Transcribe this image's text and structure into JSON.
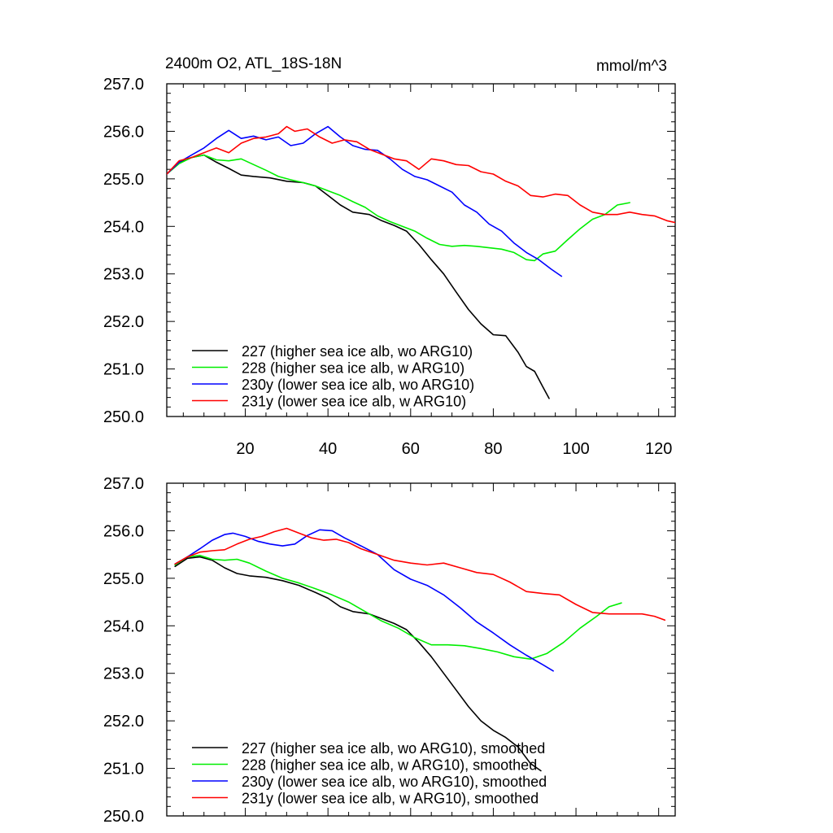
{
  "header": {
    "title": "2400m O2, ATL_18S-18N",
    "units": "mmol/m^3"
  },
  "chart_data": [
    {
      "type": "line",
      "panel": "top",
      "title": "2400m O2, ATL_18S-18N",
      "units": "mmol/m^3",
      "xlabel": "",
      "ylabel": "",
      "xlim": [
        1,
        124
      ],
      "ylim": [
        250.0,
        257.0
      ],
      "x_ticks": [
        "20",
        "40",
        "60",
        "80",
        "100",
        "120"
      ],
      "y_ticks": [
        "250.0",
        "251.0",
        "252.0",
        "253.0",
        "254.0",
        "255.0",
        "256.0",
        "257.0"
      ],
      "legend_position": "bottom-left",
      "series": [
        {
          "name": "227 (higher sea ice alb, wo ARG10)",
          "color": "#000000",
          "x": [
            1,
            4,
            7,
            10,
            13,
            16,
            19,
            22,
            26,
            30,
            34,
            37,
            40,
            43,
            46,
            50,
            53,
            56,
            59,
            62,
            65,
            68,
            71,
            74,
            77,
            80,
            83,
            86,
            88,
            90,
            92,
            93.5
          ],
          "y": [
            255.1,
            255.35,
            255.45,
            255.5,
            255.35,
            255.22,
            255.08,
            255.05,
            255.02,
            254.95,
            254.92,
            254.85,
            254.65,
            254.45,
            254.3,
            254.25,
            254.12,
            254.02,
            253.9,
            253.62,
            253.3,
            253.0,
            252.62,
            252.25,
            251.95,
            251.72,
            251.7,
            251.35,
            251.05,
            250.95,
            250.62,
            250.38
          ]
        },
        {
          "name": "228 (higher sea ice alb, w ARG10)",
          "color": "#00ee00",
          "x": [
            1,
            4,
            7,
            10,
            13,
            16,
            19,
            22,
            25,
            28,
            31,
            34,
            37,
            40,
            43,
            46,
            49,
            52,
            55,
            58,
            61,
            64,
            67,
            70,
            73,
            76,
            79,
            82,
            85,
            88,
            90,
            92,
            95,
            98,
            101,
            104,
            107,
            110,
            113
          ],
          "y": [
            255.1,
            255.32,
            255.45,
            255.5,
            255.4,
            255.38,
            255.42,
            255.3,
            255.18,
            255.05,
            254.98,
            254.92,
            254.85,
            254.75,
            254.65,
            254.52,
            254.4,
            254.22,
            254.1,
            254.0,
            253.9,
            253.75,
            253.62,
            253.58,
            253.6,
            253.58,
            253.55,
            253.52,
            253.45,
            253.3,
            253.28,
            253.42,
            253.48,
            253.72,
            253.95,
            254.15,
            254.25,
            254.45,
            254.5
          ]
        },
        {
          "name": "230y (lower sea ice alb, wo ARG10)",
          "color": "#0000ff",
          "x": [
            1,
            4,
            7,
            10,
            13,
            16,
            19,
            22,
            25,
            28,
            31,
            34,
            37,
            40,
            43,
            46,
            49,
            52,
            55,
            58,
            61,
            64,
            67,
            70,
            73,
            76,
            79,
            82,
            85,
            88,
            91,
            94,
            96.5
          ],
          "y": [
            255.1,
            255.35,
            255.5,
            255.65,
            255.85,
            256.02,
            255.85,
            255.9,
            255.82,
            255.88,
            255.7,
            255.75,
            255.95,
            256.1,
            255.88,
            255.7,
            255.62,
            255.6,
            255.42,
            255.2,
            255.05,
            254.98,
            254.85,
            254.72,
            254.45,
            254.3,
            254.05,
            253.9,
            253.65,
            253.45,
            253.3,
            253.1,
            252.95
          ]
        },
        {
          "name": "231y (lower sea ice alb, w ARG10)",
          "color": "#ff0000",
          "x": [
            1,
            4,
            7,
            10,
            13,
            16,
            19,
            22,
            25,
            28,
            30,
            32,
            35,
            38,
            41,
            44,
            47,
            50,
            53,
            56,
            59,
            62,
            65,
            68,
            71,
            74,
            77,
            80,
            83,
            86,
            89,
            92,
            95,
            98,
            101,
            104,
            107,
            110,
            113,
            116,
            119,
            122,
            124
          ],
          "y": [
            255.1,
            255.38,
            255.45,
            255.55,
            255.65,
            255.55,
            255.75,
            255.85,
            255.88,
            255.95,
            256.1,
            256.0,
            256.05,
            255.88,
            255.75,
            255.82,
            255.78,
            255.62,
            255.52,
            255.42,
            255.38,
            255.2,
            255.42,
            255.38,
            255.3,
            255.28,
            255.15,
            255.1,
            254.95,
            254.85,
            254.65,
            254.62,
            254.68,
            254.65,
            254.45,
            254.3,
            254.25,
            254.25,
            254.3,
            254.25,
            254.22,
            254.12,
            254.08
          ]
        }
      ]
    },
    {
      "type": "line",
      "panel": "bottom",
      "title": "",
      "xlabel": "",
      "ylabel": "",
      "xlim": [
        1,
        124
      ],
      "ylim": [
        250.0,
        257.0
      ],
      "y_ticks": [
        "250.0",
        "251.0",
        "252.0",
        "253.0",
        "254.0",
        "255.0",
        "256.0",
        "257.0"
      ],
      "legend_position": "bottom-left",
      "series": [
        {
          "name": "227 (higher sea ice alb, wo ARG10), smoothed",
          "color": "#000000",
          "x": [
            3,
            6,
            9,
            12,
            15,
            18,
            21,
            25,
            29,
            33,
            37,
            40,
            43,
            46,
            50,
            53,
            56,
            59,
            62,
            65,
            68,
            71,
            74,
            77,
            80,
            83,
            86,
            89,
            91.5
          ],
          "y": [
            255.25,
            255.42,
            255.45,
            255.38,
            255.22,
            255.1,
            255.05,
            255.02,
            254.95,
            254.85,
            254.7,
            254.58,
            254.4,
            254.3,
            254.25,
            254.15,
            254.05,
            253.92,
            253.65,
            253.35,
            253.0,
            252.65,
            252.3,
            252.0,
            251.8,
            251.65,
            251.45,
            251.1,
            250.95
          ]
        },
        {
          "name": "228 (higher sea ice alb, w ARG10), smoothed",
          "color": "#00ee00",
          "x": [
            3,
            6,
            9,
            12,
            15,
            18,
            21,
            25,
            29,
            33,
            37,
            41,
            45,
            49,
            53,
            57,
            61,
            65,
            69,
            73,
            77,
            81,
            85,
            89,
            93,
            97,
            101,
            105,
            108,
            111
          ],
          "y": [
            255.28,
            255.45,
            255.48,
            255.4,
            255.38,
            255.4,
            255.32,
            255.15,
            255.0,
            254.9,
            254.78,
            254.65,
            254.5,
            254.3,
            254.1,
            253.95,
            253.75,
            253.6,
            253.6,
            253.58,
            253.52,
            253.45,
            253.35,
            253.3,
            253.42,
            253.65,
            253.95,
            254.2,
            254.4,
            254.48
          ]
        },
        {
          "name": "230y (lower sea ice alb, wo ARG10), smoothed",
          "color": "#0000ff",
          "x": [
            3,
            6,
            9,
            12,
            15,
            17,
            20,
            23,
            26,
            29,
            32,
            35,
            38,
            41,
            44,
            48,
            52,
            56,
            60,
            64,
            68,
            72,
            76,
            80,
            84,
            88,
            92,
            94.5
          ],
          "y": [
            255.3,
            255.45,
            255.62,
            255.8,
            255.92,
            255.95,
            255.88,
            255.78,
            255.72,
            255.68,
            255.72,
            255.9,
            256.02,
            256.0,
            255.85,
            255.68,
            255.5,
            255.18,
            254.98,
            254.85,
            254.65,
            254.38,
            254.08,
            253.85,
            253.6,
            253.38,
            253.18,
            253.05
          ]
        },
        {
          "name": "231y (lower sea ice alb, w ARG10), smoothed",
          "color": "#ff0000",
          "x": [
            3,
            6,
            9,
            12,
            15,
            18,
            21,
            24,
            27,
            30,
            33,
            36,
            39,
            42,
            45,
            48,
            52,
            56,
            60,
            64,
            68,
            72,
            76,
            80,
            84,
            88,
            92,
            96,
            100,
            104,
            108,
            112,
            116,
            119,
            121.5
          ],
          "y": [
            255.3,
            255.45,
            255.55,
            255.58,
            255.6,
            255.72,
            255.82,
            255.88,
            255.98,
            256.05,
            255.95,
            255.85,
            255.8,
            255.82,
            255.75,
            255.62,
            255.5,
            255.38,
            255.32,
            255.28,
            255.32,
            255.22,
            255.12,
            255.08,
            254.92,
            254.72,
            254.68,
            254.65,
            254.45,
            254.28,
            254.25,
            254.25,
            254.25,
            254.2,
            254.12
          ]
        }
      ]
    }
  ]
}
